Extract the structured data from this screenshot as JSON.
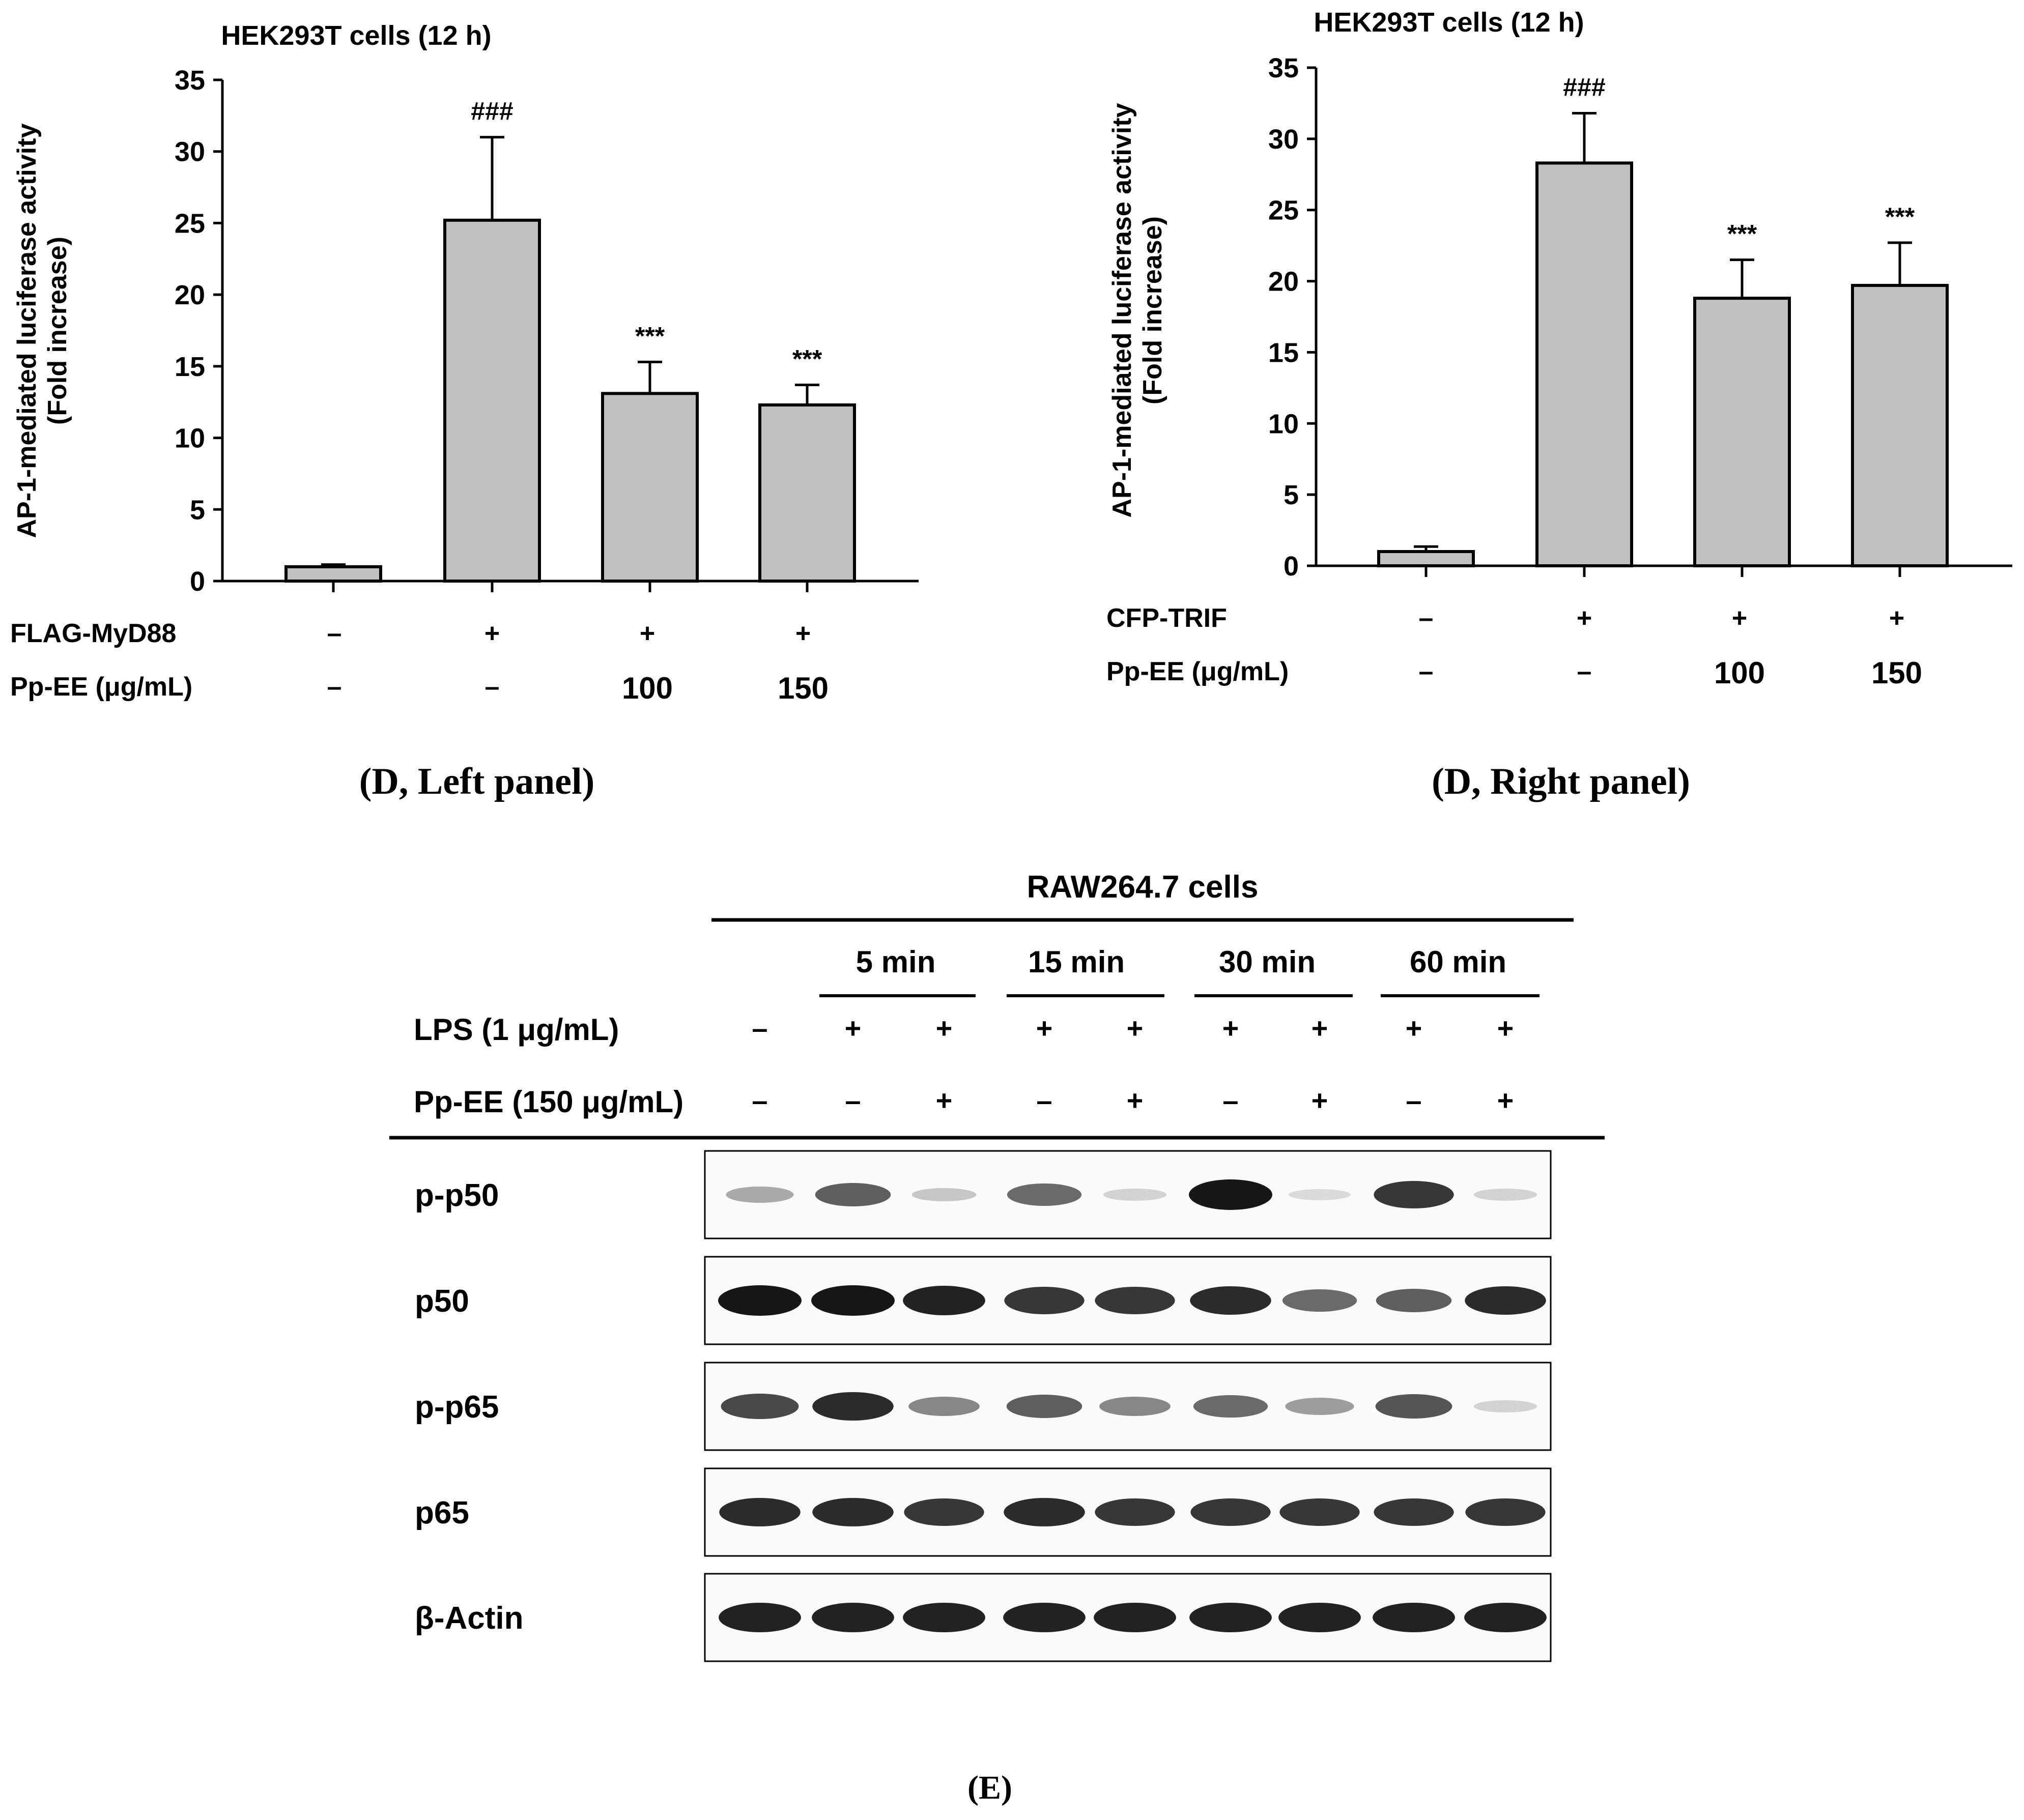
{
  "chart_data": [
    {
      "type": "bar",
      "title": "HEK293T cells (12 h)",
      "ylabel": "AP-1-mediated luciferase activity (Fold increase)",
      "ylabel_lines": [
        "AP-1-mediated luciferase activity",
        "(Fold increase)"
      ],
      "ylim": [
        0,
        35
      ],
      "yticks": [
        "0",
        "5",
        "10",
        "15",
        "20",
        "25",
        "30",
        "35"
      ],
      "values": [
        1.0,
        25.2,
        13.1,
        12.3
      ],
      "errors": [
        0.15,
        5.8,
        2.2,
        1.4
      ],
      "significance": [
        "",
        "###",
        "***",
        "***"
      ],
      "conditions": [
        {
          "label": "FLAG-MyD88",
          "values": [
            "–",
            "+",
            "+",
            "+"
          ]
        },
        {
          "label": "Pp-EE (μg/mL)",
          "values": [
            "–",
            "–",
            "100",
            "150"
          ]
        }
      ],
      "caption": "(D, Left panel)"
    },
    {
      "type": "bar",
      "title": "HEK293T cells (12 h)",
      "ylabel": "AP-1-mediated luciferase activity (Fold increase)",
      "ylabel_lines": [
        "AP-1-mediated luciferase activity",
        "(Fold increase)"
      ],
      "ylim": [
        0,
        35
      ],
      "yticks": [
        "0",
        "5",
        "10",
        "15",
        "20",
        "25",
        "30",
        "35"
      ],
      "values": [
        1.0,
        28.3,
        18.8,
        19.7
      ],
      "errors": [
        0.35,
        3.5,
        2.7,
        3.0
      ],
      "significance": [
        "",
        "###",
        "***",
        "***"
      ],
      "conditions": [
        {
          "label": "CFP-TRIF",
          "values": [
            "–",
            "+",
            "+",
            "+"
          ]
        },
        {
          "label": "Pp-EE (μg/mL)",
          "values": [
            "–",
            "–",
            "100",
            "150"
          ]
        }
      ],
      "caption": "(D, Right panel)"
    }
  ],
  "blot": {
    "title": "RAW264.7 cells",
    "timepoints": [
      "5 min",
      "15 min",
      "30 min",
      "60 min"
    ],
    "rows": [
      {
        "label": "LPS (1 μg/mL)",
        "values": [
          "–",
          "+",
          "+",
          "+",
          "+",
          "+",
          "+",
          "+",
          "+"
        ]
      },
      {
        "label": "Pp-EE (150 μg/mL)",
        "values": [
          "–",
          "–",
          "+",
          "–",
          "+",
          "–",
          "+",
          "–",
          "+"
        ]
      }
    ],
    "panels": [
      {
        "label": "p-p50",
        "intensity": [
          0.3,
          0.65,
          0.15,
          0.6,
          0.1,
          1.0,
          0.05,
          0.85,
          0.1
        ]
      },
      {
        "label": "p50",
        "intensity": [
          1.0,
          1.0,
          0.95,
          0.85,
          0.85,
          0.9,
          0.6,
          0.65,
          0.9
        ]
      },
      {
        "label": "p-p65",
        "intensity": [
          0.75,
          0.9,
          0.45,
          0.65,
          0.45,
          0.6,
          0.35,
          0.7,
          0.1
        ]
      },
      {
        "label": "p65",
        "intensity": [
          0.9,
          0.9,
          0.85,
          0.9,
          0.85,
          0.85,
          0.85,
          0.85,
          0.85
        ]
      },
      {
        "label": "β-Actin",
        "intensity": [
          0.95,
          0.95,
          0.95,
          0.95,
          0.95,
          0.95,
          0.95,
          0.95,
          0.95
        ]
      }
    ],
    "caption": "(E)"
  }
}
